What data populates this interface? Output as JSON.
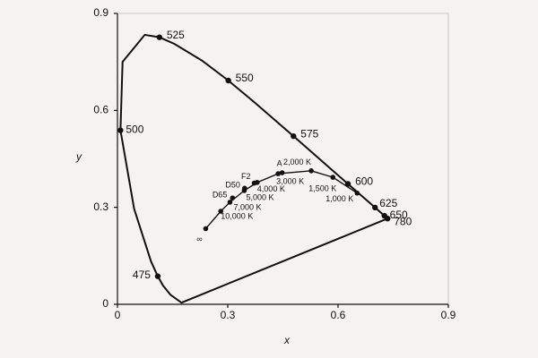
{
  "chart_data": {
    "type": "line",
    "xlabel": "x",
    "ylabel": "y",
    "xlim": [
      0,
      0.9
    ],
    "ylim": [
      0,
      0.9
    ],
    "xticks": [
      0,
      0.3,
      0.6,
      0.9
    ],
    "yticks": [
      0,
      0.3,
      0.6,
      0.9
    ],
    "series": [
      {
        "color": "#111111",
        "closed": true,
        "x": [
          0.1741,
          0.144,
          0.1241,
          0.1096,
          0.0913,
          0.0454,
          0.0082,
          0.0139,
          0.0743,
          0.1142,
          0.1547,
          0.2296,
          0.3016,
          0.3731,
          0.4788,
          0.5125,
          0.5752,
          0.627,
          0.6658,
          0.7006,
          0.726,
          0.7347
        ],
        "values": [
          0.005,
          0.0297,
          0.0578,
          0.0868,
          0.1327,
          0.295,
          0.5384,
          0.7502,
          0.8338,
          0.8262,
          0.8059,
          0.7543,
          0.6923,
          0.6245,
          0.5202,
          0.4866,
          0.4242,
          0.3725,
          0.334,
          0.2993,
          0.274,
          0.2653
        ]
      },
      {
        "color": "#111111",
        "closed": false,
        "x": [
          0.24,
          0.281,
          0.306,
          0.345,
          0.38,
          0.437,
          0.527,
          0.586,
          0.652
        ],
        "values": [
          0.234,
          0.288,
          0.316,
          0.352,
          0.377,
          0.404,
          0.413,
          0.393,
          0.344
        ]
      }
    ],
    "annotations": [
      {
        "text": "525",
        "x": 0.1142,
        "y": 0.8262
      },
      {
        "text": "550",
        "x": 0.3016,
        "y": 0.6923
      },
      {
        "text": "575",
        "x": 0.4788,
        "y": 0.5202
      },
      {
        "text": "600",
        "x": 0.627,
        "y": 0.3725
      },
      {
        "text": "625",
        "x": 0.7006,
        "y": 0.2993
      },
      {
        "text": "650",
        "x": 0.726,
        "y": 0.274
      },
      {
        "text": "780",
        "x": 0.7347,
        "y": 0.2653
      },
      {
        "text": "500",
        "x": 0.0082,
        "y": 0.5384
      },
      {
        "text": "475",
        "x": 0.1096,
        "y": 0.0868
      },
      {
        "text": "A",
        "x": 0.448,
        "y": 0.407
      },
      {
        "text": "2,000 K",
        "x": 0.527,
        "y": 0.413
      },
      {
        "text": "3,000 K",
        "x": 0.437,
        "y": 0.404
      },
      {
        "text": "4,000 K",
        "x": 0.38,
        "y": 0.377
      },
      {
        "text": "5,000 K",
        "x": 0.345,
        "y": 0.352
      },
      {
        "text": "7,000 K",
        "x": 0.306,
        "y": 0.316
      },
      {
        "text": "10,000 K",
        "x": 0.281,
        "y": 0.288
      },
      {
        "text": "∞",
        "x": 0.24,
        "y": 0.234
      },
      {
        "text": "1,500 K",
        "x": 0.586,
        "y": 0.393
      },
      {
        "text": "1,000 K",
        "x": 0.652,
        "y": 0.344
      },
      {
        "text": "F2",
        "x": 0.372,
        "y": 0.375
      },
      {
        "text": "D50",
        "x": 0.346,
        "y": 0.359
      },
      {
        "text": "D65",
        "x": 0.313,
        "y": 0.329
      }
    ]
  }
}
